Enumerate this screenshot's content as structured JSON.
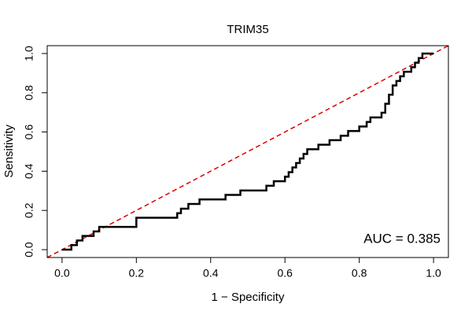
{
  "chart_data": {
    "type": "line",
    "title": "TRIM35",
    "x_label": "1 − Specificity",
    "y_label": "Sensitivity",
    "annotation": "AUC = 0.385",
    "color": "#000000",
    "reference_color": "#dd0000",
    "xlim": [
      -0.04,
      1.04
    ],
    "ylim": [
      -0.04,
      1.04
    ],
    "xticks": [
      {
        "value": 0,
        "label": "0.0"
      },
      0.2,
      0.4,
      0.6,
      0.8,
      {
        "value": 1,
        "label": "1.0"
      }
    ],
    "yticks": [
      {
        "value": 0,
        "label": "0.0"
      },
      0.2,
      0.4,
      0.6,
      0.8,
      {
        "value": 1,
        "label": "1.0"
      }
    ],
    "x": [
      0,
      0.025,
      0.025,
      0.04,
      0.04,
      0.055,
      0.055,
      0.085,
      0.085,
      0.1,
      0.1,
      0.2,
      0.2,
      0.31,
      0.31,
      0.32,
      0.32,
      0.34,
      0.34,
      0.37,
      0.37,
      0.44,
      0.44,
      0.48,
      0.48,
      0.55,
      0.55,
      0.57,
      0.57,
      0.6,
      0.6,
      0.61,
      0.61,
      0.62,
      0.62,
      0.63,
      0.63,
      0.64,
      0.64,
      0.65,
      0.65,
      0.66,
      0.66,
      0.69,
      0.69,
      0.72,
      0.72,
      0.75,
      0.75,
      0.77,
      0.77,
      0.8,
      0.8,
      0.82,
      0.82,
      0.83,
      0.83,
      0.86,
      0.86,
      0.87,
      0.87,
      0.88,
      0.88,
      0.89,
      0.89,
      0.9,
      0.9,
      0.91,
      0.91,
      0.92,
      0.92,
      0.94,
      0.94,
      0.95,
      0.95,
      0.96,
      0.96,
      0.97,
      0.97,
      1.0
    ],
    "values": [
      0,
      0,
      0.023,
      0.023,
      0.047,
      0.047,
      0.07,
      0.07,
      0.093,
      0.093,
      0.116,
      0.116,
      0.163,
      0.163,
      0.186,
      0.186,
      0.209,
      0.209,
      0.233,
      0.233,
      0.256,
      0.256,
      0.279,
      0.279,
      0.302,
      0.302,
      0.326,
      0.326,
      0.349,
      0.349,
      0.372,
      0.372,
      0.395,
      0.395,
      0.419,
      0.419,
      0.442,
      0.442,
      0.465,
      0.465,
      0.488,
      0.488,
      0.512,
      0.512,
      0.535,
      0.535,
      0.558,
      0.558,
      0.581,
      0.581,
      0.605,
      0.605,
      0.628,
      0.628,
      0.651,
      0.651,
      0.674,
      0.674,
      0.698,
      0.698,
      0.744,
      0.744,
      0.79,
      0.79,
      0.837,
      0.837,
      0.86,
      0.86,
      0.884,
      0.884,
      0.907,
      0.907,
      0.93,
      0.93,
      0.953,
      0.953,
      0.977,
      0.977,
      1.0,
      1.0
    ]
  }
}
